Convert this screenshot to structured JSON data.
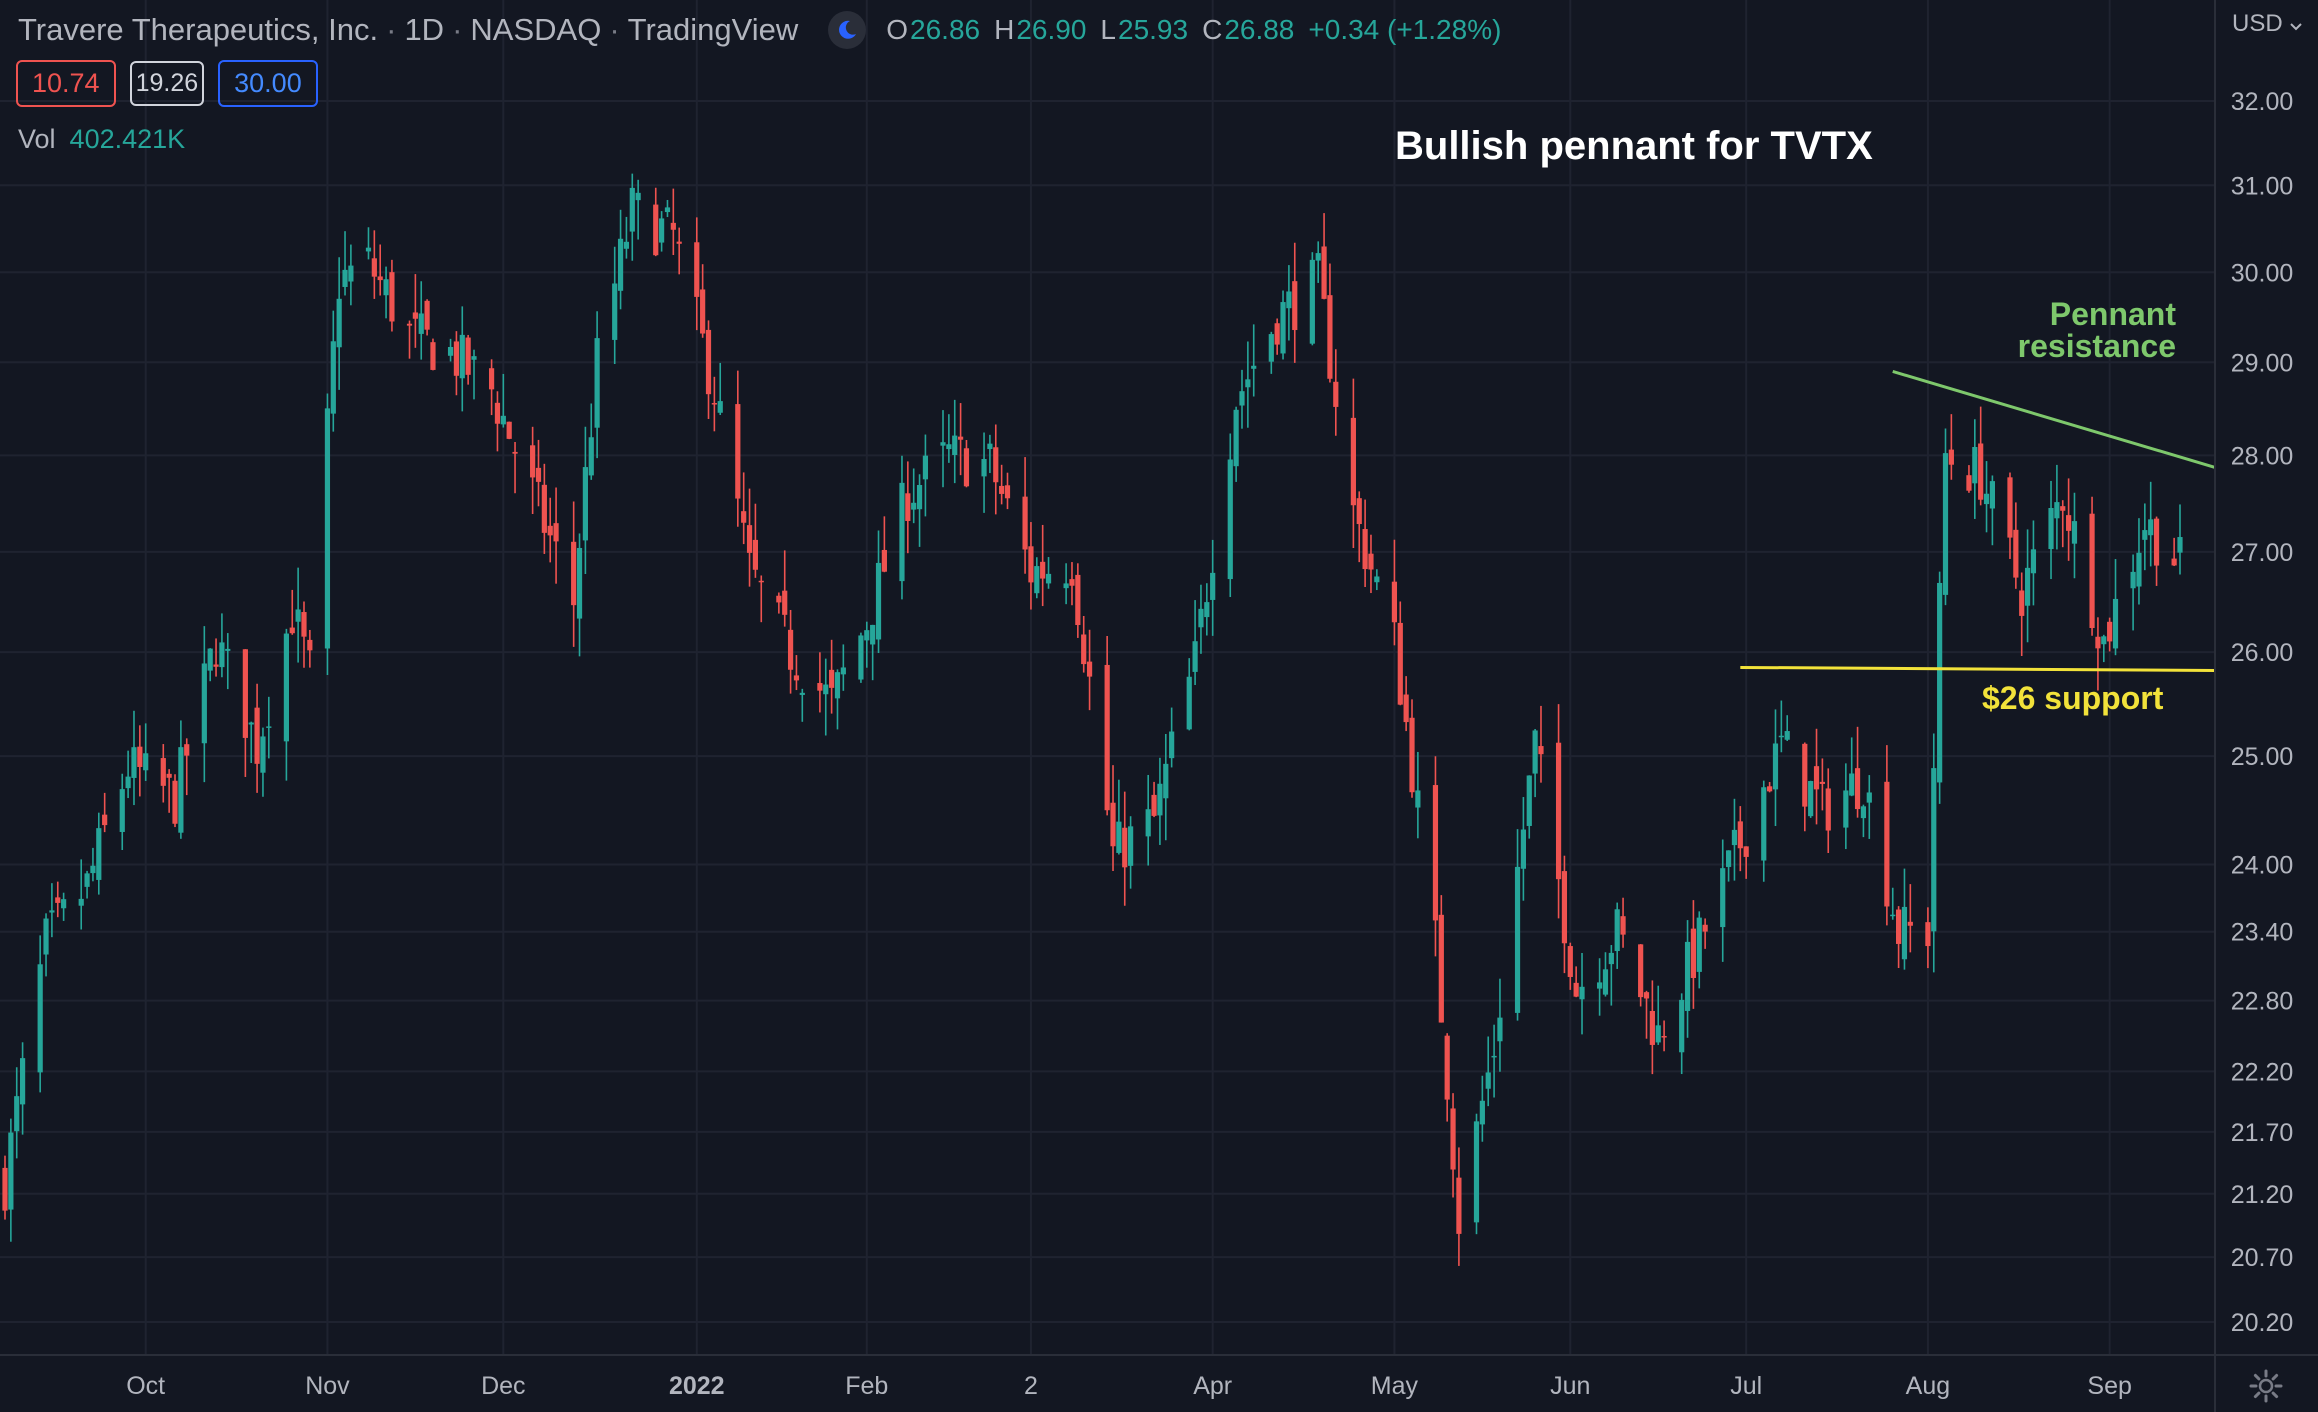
{
  "header": {
    "symbol_name": "Travere Therapeutics, Inc.",
    "interval": "1D",
    "exchange": "NASDAQ",
    "source": "TradingView",
    "ohlc": {
      "o": "26.86",
      "h": "26.90",
      "l": "25.93",
      "c": "26.88",
      "change": "+0.34 (+1.28%)"
    }
  },
  "badges": {
    "left": "10.74",
    "middle": "19.26",
    "right": "30.00"
  },
  "volume": {
    "label": "Vol",
    "value": "402.421K"
  },
  "currency": "USD",
  "icons": {
    "theme": "moon-icon",
    "dropdown": "chevron-down-icon",
    "settings": "gear-icon"
  },
  "colors": {
    "background": "#131722",
    "up": "#26a69a",
    "down": "#ef5350",
    "resistance": "#7ec86c",
    "support": "#f2e23a"
  },
  "chart_data": {
    "type": "candlestick",
    "title": "Bullish pennant for TVTX",
    "scale": "log",
    "y_range": [
      20.0,
      32.5
    ],
    "y_ticks": [
      "32.00",
      "31.00",
      "30.00",
      "29.00",
      "28.00",
      "27.00",
      "26.00",
      "25.00",
      "24.00",
      "23.40",
      "22.80",
      "22.20",
      "21.70",
      "21.20",
      "20.70",
      "20.20"
    ],
    "x_ticks": [
      {
        "label": "Oct",
        "date": "2021-10-01"
      },
      {
        "label": "Nov",
        "date": "2021-11-01"
      },
      {
        "label": "Dec",
        "date": "2021-12-01"
      },
      {
        "label": "2022",
        "date": "2022-01-03"
      },
      {
        "label": "Feb",
        "date": "2022-02-01"
      },
      {
        "label": "2",
        "date": "2022-03-01"
      },
      {
        "label": "Apr",
        "date": "2022-04-01"
      },
      {
        "label": "May",
        "date": "2022-05-02"
      },
      {
        "label": "Jun",
        "date": "2022-06-01"
      },
      {
        "label": "Jul",
        "date": "2022-07-01"
      },
      {
        "label": "Aug",
        "date": "2022-08-01"
      },
      {
        "label": "Sep",
        "date": "2022-09-01"
      }
    ],
    "first_date": "2021-09-07",
    "last_date": "2022-09-13",
    "anchors": [
      [
        "2021-09-07",
        21.3
      ],
      [
        "2021-09-14",
        23.3
      ],
      [
        "2021-09-21",
        23.8
      ],
      [
        "2021-09-28",
        24.9
      ],
      [
        "2021-10-06",
        24.6
      ],
      [
        "2021-10-13",
        26.1
      ],
      [
        "2021-10-20",
        25.1
      ],
      [
        "2021-10-26",
        26.4
      ],
      [
        "2021-10-29",
        25.8
      ],
      [
        "2021-11-03",
        29.9
      ],
      [
        "2021-11-08",
        30.1
      ],
      [
        "2021-11-15",
        29.3
      ],
      [
        "2021-11-22",
        29.1
      ],
      [
        "2021-11-29",
        28.7
      ],
      [
        "2021-12-06",
        27.6
      ],
      [
        "2021-12-13",
        26.5
      ],
      [
        "2021-12-17",
        29.0
      ],
      [
        "2021-12-23",
        30.7
      ],
      [
        "2021-12-30",
        30.4
      ],
      [
        "2022-01-06",
        28.7
      ],
      [
        "2022-01-12",
        26.8
      ],
      [
        "2022-01-19",
        26.0
      ],
      [
        "2022-01-26",
        25.5
      ],
      [
        "2022-02-01",
        26.3
      ],
      [
        "2022-02-08",
        27.6
      ],
      [
        "2022-02-15",
        28.0
      ],
      [
        "2022-02-22",
        27.9
      ],
      [
        "2022-03-01",
        26.8
      ],
      [
        "2022-03-08",
        26.9
      ],
      [
        "2022-03-15",
        24.1
      ],
      [
        "2022-03-22",
        24.4
      ],
      [
        "2022-03-29",
        25.9
      ],
      [
        "2022-04-05",
        28.6
      ],
      [
        "2022-04-12",
        29.5
      ],
      [
        "2022-04-19",
        29.9
      ],
      [
        "2022-04-25",
        27.4
      ],
      [
        "2022-05-02",
        26.1
      ],
      [
        "2022-05-09",
        23.3
      ],
      [
        "2022-05-13",
        21.0
      ],
      [
        "2022-05-19",
        22.4
      ],
      [
        "2022-05-26",
        25.1
      ],
      [
        "2022-06-02",
        22.9
      ],
      [
        "2022-06-09",
        23.4
      ],
      [
        "2022-06-16",
        22.5
      ],
      [
        "2022-06-23",
        23.3
      ],
      [
        "2022-06-30",
        24.2
      ],
      [
        "2022-07-07",
        25.1
      ],
      [
        "2022-07-14",
        24.5
      ],
      [
        "2022-07-21",
        24.8
      ],
      [
        "2022-07-27",
        23.4
      ],
      [
        "2022-08-01",
        23.4
      ],
      [
        "2022-08-04",
        28.0
      ],
      [
        "2022-08-10",
        27.8
      ],
      [
        "2022-08-17",
        26.6
      ],
      [
        "2022-08-24",
        27.6
      ],
      [
        "2022-08-31",
        26.1
      ],
      [
        "2022-09-07",
        27.3
      ],
      [
        "2022-09-13",
        26.88
      ]
    ],
    "annotations": [
      {
        "type": "trendline",
        "label": "Pennant resistance",
        "from": [
          "2022-07-26",
          28.9
        ],
        "to": [
          "2022-09-27",
          28.0
        ]
      },
      {
        "type": "trendline",
        "label": "$26 support",
        "from": [
          "2022-06-30",
          25.85
        ],
        "to": [
          "2022-09-27",
          25.82
        ]
      }
    ]
  }
}
